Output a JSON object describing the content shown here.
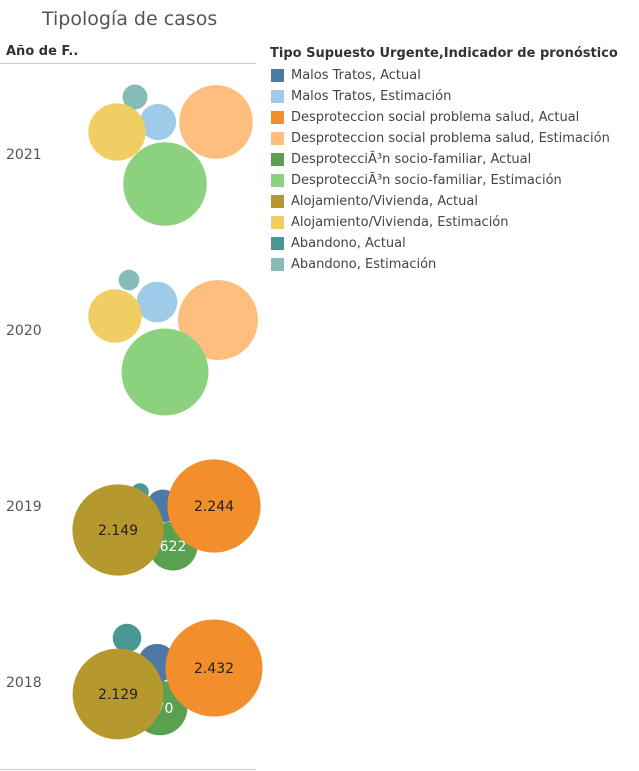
{
  "title": "Tipología de casos",
  "row_header": "Año de F..",
  "legend": {
    "title": "Tipo Supuesto Urgente,Indicador de pronóstico",
    "items": [
      {
        "label": "Malos Tratos, Actual",
        "color": "#4e79a7"
      },
      {
        "label": "Malos Tratos, Estimación",
        "color": "#a0cbe8"
      },
      {
        "label": "Desproteccion social problema salud, Actual",
        "color": "#f28e2b"
      },
      {
        "label": "Desproteccion social problema salud, Estimación",
        "color": "#ffbe7d"
      },
      {
        "label": "DesprotecciÃ³n socio-familiar, Actual",
        "color": "#59a14f"
      },
      {
        "label": "DesprotecciÃ³n socio-familiar, Estimación",
        "color": "#8cd17d"
      },
      {
        "label": "Alojamiento/Vivienda, Actual",
        "color": "#b6992d"
      },
      {
        "label": "Alojamiento/Vivienda, Estimación",
        "color": "#f1ce63"
      },
      {
        "label": "Abandono, Actual",
        "color": "#499894"
      },
      {
        "label": "Abandono, Estimación",
        "color": "#86bcb6"
      }
    ]
  },
  "chart_data": {
    "type": "packed-bubble",
    "title": "Tipología de casos",
    "row_field": "Año de F..",
    "color_field": "Tipo Supuesto Urgente,Indicador de pronóstico",
    "rows": [
      {
        "year": "2021",
        "bubbles": [
          {
            "series": "Abandono, Estimación",
            "value": 160,
            "label": ""
          },
          {
            "series": "Malos Tratos, Estimación",
            "value": 340,
            "label": ""
          },
          {
            "series": "Alojamiento/Vivienda, Estimación",
            "value": 850,
            "label": ""
          },
          {
            "series": "Desproteccion social problema salud, Estimación",
            "value": 1400,
            "label": ""
          },
          {
            "series": "DesprotecciÃ³n socio-familiar, Estimación",
            "value": 1800,
            "label": ""
          }
        ]
      },
      {
        "year": "2020",
        "bubbles": [
          {
            "series": "Abandono, Estimación",
            "value": 110,
            "label": ""
          },
          {
            "series": "Malos Tratos, Estimación",
            "value": 430,
            "label": ""
          },
          {
            "series": "Alojamiento/Vivienda, Estimación",
            "value": 740,
            "label": ""
          },
          {
            "series": "Desproteccion social problema salud, Estimación",
            "value": 1650,
            "label": ""
          },
          {
            "series": "DesprotecciÃ³n socio-familiar, Estimación",
            "value": 1950,
            "label": ""
          }
        ]
      },
      {
        "year": "2019",
        "bubbles": [
          {
            "series": "Abandono, Actual",
            "value": 80,
            "label": ""
          },
          {
            "series": "Malos Tratos, Actual",
            "value": 280,
            "label": ""
          },
          {
            "series": "DesprotecciÃ³n socio-familiar, Actual",
            "value": 622,
            "label": "622"
          },
          {
            "series": "Alojamiento/Vivienda, Actual",
            "value": 2149,
            "label": "2.149"
          },
          {
            "series": "Desproteccion social problema salud, Actual",
            "value": 2244,
            "label": "2.244"
          }
        ]
      },
      {
        "year": "2018",
        "bubbles": [
          {
            "series": "Abandono, Actual",
            "value": 210,
            "label": ""
          },
          {
            "series": "Malos Tratos, Actual",
            "value": 380,
            "label": ""
          },
          {
            "series": "DesprotecciÃ³n socio-familiar, Actual",
            "value": 770,
            "label": "770"
          },
          {
            "series": "Alojamiento/Vivienda, Actual",
            "value": 2129,
            "label": "2.129"
          },
          {
            "series": "Desproteccion social problema salud, Actual",
            "value": 2432,
            "label": "2.432"
          }
        ]
      }
    ]
  }
}
